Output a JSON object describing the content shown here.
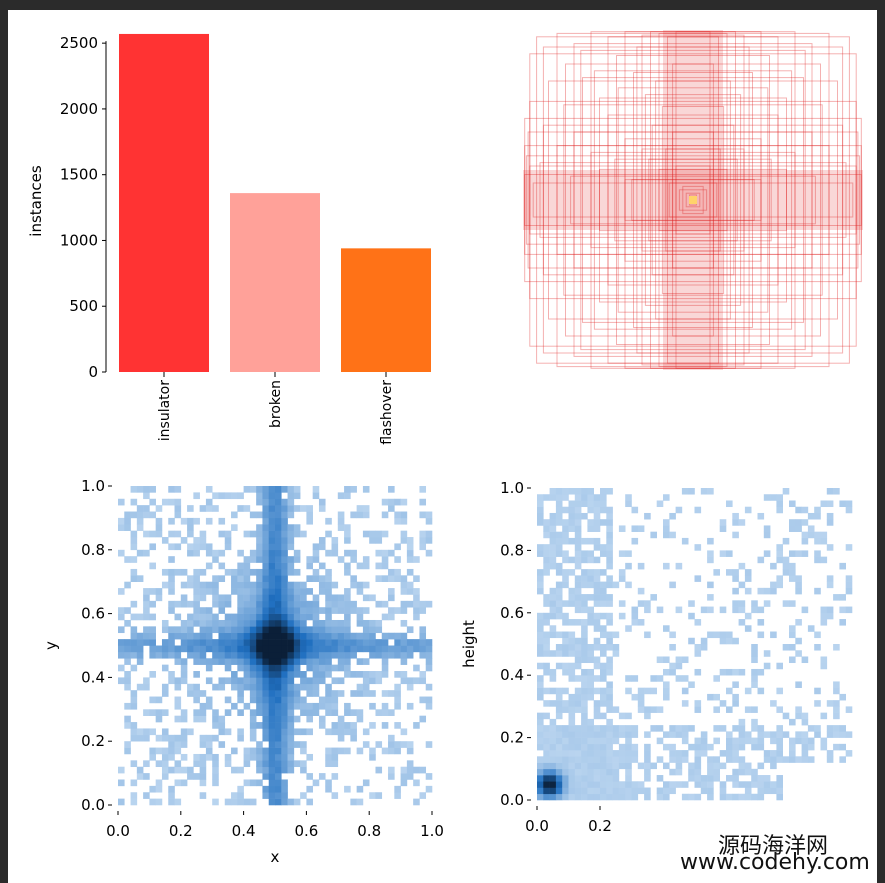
{
  "watermark": {
    "line1": "源码海洋网",
    "line2": "www.codehy.com"
  },
  "chart_data": [
    {
      "type": "bar",
      "categories": [
        "insulator",
        "broken",
        "flashover"
      ],
      "values": [
        2570,
        1360,
        940
      ],
      "colors": [
        "#ff3333",
        "#ffa199",
        "#ff7217"
      ],
      "ylabel": "instances",
      "ylim": [
        0,
        2600
      ],
      "yticks": [
        0,
        500,
        1000,
        1500,
        2000,
        2500
      ],
      "ytick_labels": [
        "0",
        "500",
        "1000",
        "1500",
        "2000",
        "2500"
      ]
    },
    {
      "type": "box-overlay",
      "box_color": "#e02020",
      "center_marker_color": "#ffd36b",
      "boxes_wh": [
        [
          0.92,
          0.96
        ],
        [
          0.88,
          0.9
        ],
        [
          0.96,
          0.86
        ],
        [
          0.8,
          0.98
        ],
        [
          0.7,
          0.92
        ],
        [
          0.6,
          0.99
        ],
        [
          0.5,
          0.96
        ],
        [
          0.4,
          0.99
        ],
        [
          0.3,
          0.97
        ],
        [
          0.25,
          0.99
        ],
        [
          0.2,
          0.98
        ],
        [
          0.15,
          0.96
        ],
        [
          0.1,
          0.99
        ],
        [
          0.96,
          0.58
        ],
        [
          0.99,
          0.48
        ],
        [
          0.97,
          0.4
        ],
        [
          0.99,
          0.32
        ],
        [
          0.98,
          0.26
        ],
        [
          0.96,
          0.2
        ],
        [
          0.99,
          0.15
        ],
        [
          0.94,
          0.1
        ],
        [
          0.85,
          0.7
        ],
        [
          0.75,
          0.8
        ],
        [
          0.65,
          0.72
        ],
        [
          0.55,
          0.6
        ],
        [
          0.5,
          0.5
        ],
        [
          0.45,
          0.85
        ],
        [
          0.35,
          0.75
        ],
        [
          0.28,
          0.62
        ],
        [
          0.22,
          0.7
        ],
        [
          0.18,
          0.55
        ],
        [
          0.12,
          0.8
        ],
        [
          0.7,
          0.4
        ],
        [
          0.8,
          0.32
        ],
        [
          0.6,
          0.28
        ],
        [
          0.9,
          0.22
        ],
        [
          0.55,
          0.18
        ],
        [
          0.72,
          0.14
        ],
        [
          0.4,
          0.36
        ],
        [
          0.3,
          0.3
        ],
        [
          0.26,
          0.24
        ],
        [
          0.2,
          0.18
        ],
        [
          0.16,
          0.3
        ],
        [
          0.1,
          0.2
        ],
        [
          0.36,
          0.12
        ],
        [
          0.14,
          0.1
        ],
        [
          0.08,
          0.06
        ],
        [
          0.06,
          0.08
        ],
        [
          0.04,
          0.04
        ],
        [
          0.02,
          0.03
        ],
        [
          0.66,
          0.88
        ],
        [
          0.44,
          0.66
        ],
        [
          0.33,
          0.9
        ],
        [
          0.88,
          0.44
        ],
        [
          0.76,
          0.56
        ],
        [
          0.58,
          0.76
        ],
        [
          0.24,
          0.44
        ],
        [
          0.46,
          0.24
        ],
        [
          0.12,
          0.4
        ],
        [
          0.4,
          0.12
        ]
      ]
    },
    {
      "type": "heatmap",
      "xlabel": "x",
      "ylabel": "y",
      "xlim": [
        0,
        1
      ],
      "ylim": [
        0,
        1
      ],
      "xticks": [
        0.0,
        0.2,
        0.4,
        0.6,
        0.8,
        1.0
      ],
      "yticks": [
        0.0,
        0.2,
        0.4,
        0.6,
        0.8,
        1.0
      ],
      "xtick_labels": [
        "0.0",
        "0.2",
        "0.4",
        "0.6",
        "0.8",
        "1.0"
      ],
      "ytick_labels": [
        "0.0",
        "0.2",
        "0.4",
        "0.6",
        "0.8",
        "1.0"
      ],
      "bins": 50,
      "colormap": [
        "#b9d4ef",
        "#1f6fc0",
        "#0b1f38"
      ],
      "hotspot": {
        "x": 0.5,
        "y": 0.5
      }
    },
    {
      "type": "heatmap",
      "xlabel": "",
      "ylabel": "height",
      "xlim": [
        0,
        1
      ],
      "ylim": [
        0,
        1
      ],
      "xticks": [
        0.0,
        0.2
      ],
      "yticks": [
        0.0,
        0.2,
        0.4,
        0.6,
        0.8,
        1.0
      ],
      "xtick_labels": [
        "0.0",
        "0.2"
      ],
      "ytick_labels": [
        "0.0",
        "0.2",
        "0.4",
        "0.6",
        "0.8",
        "1.0"
      ],
      "bins": 50,
      "colormap": [
        "#b9d4ef",
        "#1f6fc0",
        "#0b1f38"
      ],
      "hotspot": {
        "x": 0.04,
        "y": 0.05
      }
    }
  ]
}
